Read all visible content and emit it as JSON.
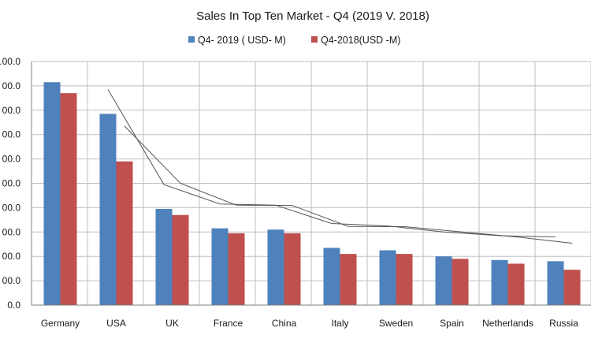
{
  "chart_data": {
    "type": "bar",
    "title": "Sales In Top Ten Market - Q4 (2019 V. 2018)",
    "categories": [
      "Germany",
      "USA",
      "UK",
      "France",
      "China",
      "Italy",
      "Sweden",
      "Spain",
      "Netherlands",
      "Russia"
    ],
    "series": [
      {
        "name": "Q4- 2019 ( USD- M)",
        "color": "#4f81bd",
        "values": [
          91.5,
          78.5,
          39.5,
          31.5,
          31.0,
          23.5,
          22.5,
          20.0,
          18.5,
          18.0
        ]
      },
      {
        "name": "Q4-2018(USD -M)",
        "color": "#c0504d",
        "values": [
          87.0,
          59.0,
          37.0,
          29.5,
          29.5,
          21.0,
          21.0,
          19.0,
          17.0,
          14.5
        ]
      }
    ],
    "ytick_labels": [
      "0.0",
      "00.0",
      "00.0",
      "00.0",
      "00.0",
      "00.0",
      "00.0",
      "00.0",
      "00.0",
      "00.0",
      ".00.0"
    ],
    "ylim": [
      0,
      100
    ],
    "grid": true,
    "legend_position": "top",
    "trendlines_visible": true
  }
}
